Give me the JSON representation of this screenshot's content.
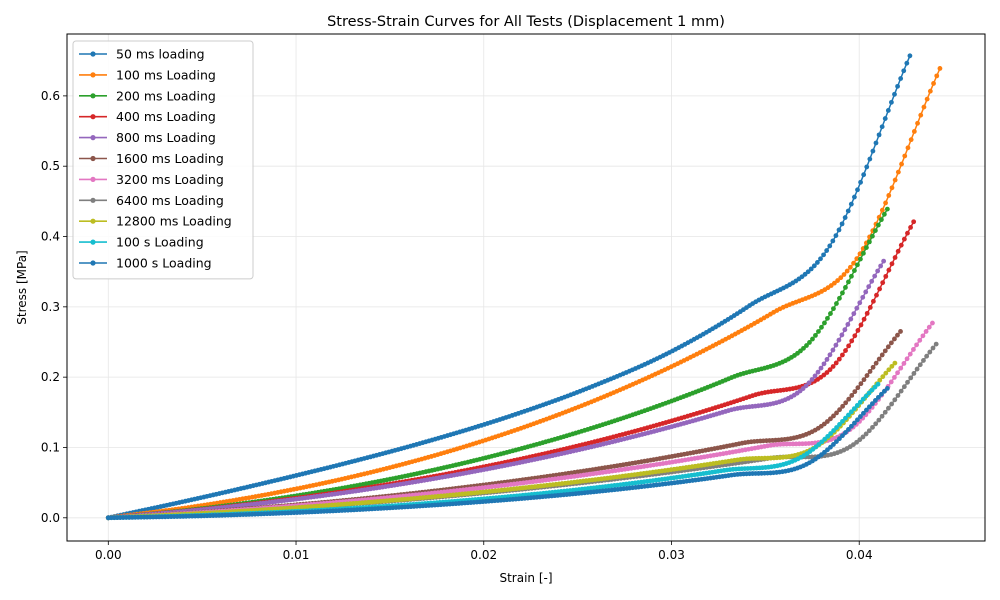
{
  "chart_data": {
    "type": "line",
    "title": "Stress-Strain Curves for All Tests (Displacement 1 mm)",
    "xlabel": "Strain [-]",
    "ylabel": "Stress [MPa]",
    "xlim": [
      -0.0022,
      0.0467
    ],
    "ylim": [
      -0.033,
      0.688
    ],
    "xticks": [
      0.0,
      0.01,
      0.02,
      0.03,
      0.04
    ],
    "xtick_labels": [
      "0.00",
      "0.01",
      "0.02",
      "0.03",
      "0.04"
    ],
    "yticks": [
      0.0,
      0.1,
      0.2,
      0.3,
      0.4,
      0.5,
      0.6
    ],
    "ytick_labels": [
      "0.0",
      "0.1",
      "0.2",
      "0.3",
      "0.4",
      "0.5",
      "0.6"
    ],
    "grid": true,
    "legend_position": "upper-left",
    "series": [
      {
        "name": "50 ms loading",
        "color": "#1f77b4",
        "x": [
          0,
          0.00427,
          0.00854,
          0.01281,
          0.01708,
          0.02135,
          0.02562,
          0.02989,
          0.03416,
          0.03843,
          0.0427
        ],
        "y": [
          0,
          0.0246,
          0.0508,
          0.0787,
          0.1093,
          0.1441,
          0.1851,
          0.2351,
          0.3018,
          0.3866,
          0.657
        ]
      },
      {
        "name": "100 ms Loading",
        "color": "#ff7f0e",
        "x": [
          0,
          0.00443,
          0.00886,
          0.01329,
          0.01772,
          0.02215,
          0.02658,
          0.03101,
          0.03544,
          0.03987,
          0.0443
        ],
        "y": [
          0,
          0.0153,
          0.0352,
          0.0602,
          0.0912,
          0.1289,
          0.1742,
          0.2282,
          0.2922,
          0.3685,
          0.639
        ]
      },
      {
        "name": "200 ms Loading",
        "color": "#2ca02c",
        "x": [
          0,
          0.00415,
          0.0083,
          0.01245,
          0.0166,
          0.02075,
          0.0249,
          0.02905,
          0.0332,
          0.03735,
          0.0415
        ],
        "y": [
          0,
          0.0105,
          0.0245,
          0.0421,
          0.0637,
          0.0897,
          0.1205,
          0.1568,
          0.1994,
          0.2494,
          0.439
        ]
      },
      {
        "name": "400 ms Loading",
        "color": "#d62728",
        "x": [
          0,
          0.00429,
          0.00858,
          0.01287,
          0.01716,
          0.02145,
          0.02574,
          0.03003,
          0.03432,
          0.03861,
          0.0429
        ],
        "y": [
          0,
          0.0101,
          0.023,
          0.0389,
          0.058,
          0.0806,
          0.1071,
          0.138,
          0.1737,
          0.2152,
          0.421
        ]
      },
      {
        "name": "800 ms Loading",
        "color": "#9467bd",
        "x": [
          0,
          0.00413,
          0.00826,
          0.01239,
          0.01652,
          0.02065,
          0.02478,
          0.02891,
          0.03304,
          0.03717,
          0.0413
        ],
        "y": [
          0,
          0.0093,
          0.0209,
          0.035,
          0.0519,
          0.0718,
          0.095,
          0.1218,
          0.1525,
          0.1877,
          0.365
        ]
      },
      {
        "name": "1600 ms Loading",
        "color": "#8c564b",
        "x": [
          0,
          0.00422,
          0.00844,
          0.01266,
          0.01688,
          0.0211,
          0.02532,
          0.02954,
          0.03376,
          0.03798,
          0.0422
        ],
        "y": [
          0,
          0.0067,
          0.015,
          0.0249,
          0.0367,
          0.0505,
          0.0665,
          0.085,
          0.1061,
          0.1302,
          0.265
        ]
      },
      {
        "name": "3200 ms Loading",
        "color": "#e377c2",
        "x": [
          0,
          0.00439,
          0.00878,
          0.01317,
          0.01756,
          0.02195,
          0.02634,
          0.03073,
          0.03512,
          0.03951,
          0.0439
        ],
        "y": [
          0,
          0.0066,
          0.0147,
          0.0244,
          0.0358,
          0.0491,
          0.0645,
          0.0822,
          0.1024,
          0.1254,
          0.277
        ]
      },
      {
        "name": "6400 ms Loading",
        "color": "#7f7f7f",
        "x": [
          0,
          0.00441,
          0.00882,
          0.01323,
          0.01764,
          0.02205,
          0.02646,
          0.03087,
          0.03528,
          0.03969,
          0.0441
        ],
        "y": [
          0,
          0.0053,
          0.012,
          0.02,
          0.0295,
          0.0406,
          0.0534,
          0.0681,
          0.0849,
          0.1041,
          0.247
        ]
      },
      {
        "name": "12800 ms Loading",
        "color": "#bcbd22",
        "x": [
          0,
          0.00419,
          0.00838,
          0.01257,
          0.01676,
          0.02095,
          0.02514,
          0.02933,
          0.03352,
          0.03771,
          0.0419
        ],
        "y": [
          0,
          0.0052,
          0.0116,
          0.0194,
          0.0286,
          0.0393,
          0.0517,
          0.066,
          0.0824,
          0.1011,
          0.22
        ]
      },
      {
        "name": "100 s Loading",
        "color": "#17becf",
        "x": [
          0,
          0.0041,
          0.0082,
          0.0123,
          0.0164,
          0.0205,
          0.0246,
          0.0287,
          0.0328,
          0.0369,
          0.041
        ],
        "y": [
          0,
          0.0028,
          0.0069,
          0.0124,
          0.0194,
          0.0281,
          0.0388,
          0.0518,
          0.0674,
          0.0861,
          0.19
        ]
      },
      {
        "name": "1000 s Loading",
        "color": "#1f77b4",
        "x": [
          0,
          0.00415,
          0.0083,
          0.01245,
          0.0166,
          0.02075,
          0.0249,
          0.02905,
          0.0332,
          0.03735,
          0.0415
        ],
        "y": [
          0,
          0.0021,
          0.0056,
          0.0104,
          0.0167,
          0.0246,
          0.0343,
          0.0462,
          0.0607,
          0.0783,
          0.184
        ]
      }
    ]
  }
}
